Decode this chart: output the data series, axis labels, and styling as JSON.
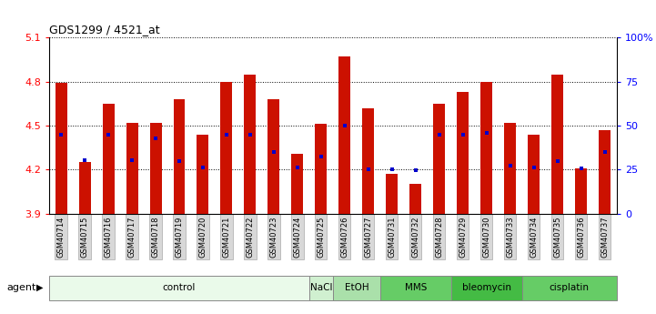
{
  "title": "GDS1299 / 4521_at",
  "samples": [
    "GSM40714",
    "GSM40715",
    "GSM40716",
    "GSM40717",
    "GSM40718",
    "GSM40719",
    "GSM40720",
    "GSM40721",
    "GSM40722",
    "GSM40723",
    "GSM40724",
    "GSM40725",
    "GSM40726",
    "GSM40727",
    "GSM40731",
    "GSM40732",
    "GSM40728",
    "GSM40729",
    "GSM40730",
    "GSM40733",
    "GSM40734",
    "GSM40735",
    "GSM40736",
    "GSM40737"
  ],
  "bar_values": [
    4.79,
    4.25,
    4.65,
    4.52,
    4.52,
    4.68,
    4.44,
    4.8,
    4.85,
    4.68,
    4.31,
    4.51,
    4.97,
    4.62,
    4.17,
    4.1,
    4.65,
    4.73,
    4.8,
    4.52,
    4.44,
    4.85,
    4.21,
    4.47
  ],
  "percentile_values": [
    4.435,
    4.265,
    4.435,
    4.265,
    4.41,
    4.255,
    4.215,
    4.435,
    4.435,
    4.32,
    4.215,
    4.29,
    4.5,
    4.2,
    4.2,
    4.195,
    4.435,
    4.435,
    4.45,
    4.225,
    4.215,
    4.255,
    4.21,
    4.32
  ],
  "bar_color": "#cc1100",
  "percentile_color": "#0000cc",
  "ymin": 3.9,
  "ymax": 5.1,
  "yticks_left": [
    3.9,
    4.2,
    4.5,
    4.8,
    5.1
  ],
  "ytick_labels_right": [
    "0",
    "25",
    "50",
    "75",
    "100%"
  ],
  "yticks_right": [
    0,
    25,
    50,
    75,
    100
  ],
  "groups": [
    {
      "label": "control",
      "start": 0,
      "end": 11,
      "color": "#eafaea"
    },
    {
      "label": "NaCl",
      "start": 11,
      "end": 12,
      "color": "#d0f0d0"
    },
    {
      "label": "EtOH",
      "start": 12,
      "end": 14,
      "color": "#aae0aa"
    },
    {
      "label": "MMS",
      "start": 14,
      "end": 17,
      "color": "#66cc66"
    },
    {
      "label": "bleomycin",
      "start": 17,
      "end": 20,
      "color": "#44bb44"
    },
    {
      "label": "cisplatin",
      "start": 20,
      "end": 24,
      "color": "#66cc66"
    }
  ],
  "bar_width": 0.5
}
